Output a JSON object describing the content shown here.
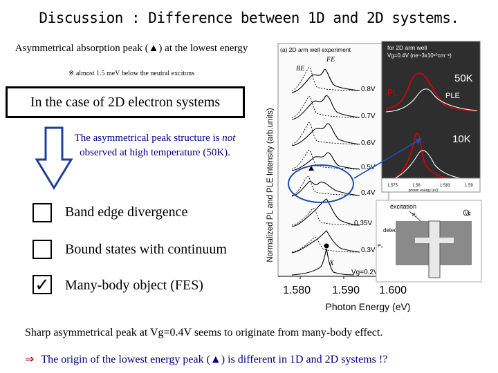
{
  "slide": {
    "title": "Discussion : Difference between 1D and 2D systems.",
    "asym_text": "Asymmetrical absorption peak (▲) at the lowest energy",
    "note": "※ almost 1.5 meV below the neutral excitons",
    "box_title": "In the case of 2D electron systems",
    "high_temp": {
      "pre": "The asymmetrical peak structure is ",
      "em": "not",
      "post": " observed at high temperature (50K)."
    },
    "options": [
      {
        "label": "Band edge divergence",
        "checked": false
      },
      {
        "label": "Bound states with continuum",
        "checked": false
      },
      {
        "label": "Many-body object (FES)",
        "checked": true
      }
    ],
    "check_mark": "✓",
    "footer1": "Sharp asymmetrical peak at Vg=0.4V seems to originate from many-body effect.",
    "footer2": {
      "arrow": "⇒",
      "text": "The origin of the lowest energy peak (▲) is different in 1D and 2D systems !?"
    }
  },
  "figure": {
    "panel_label": "(a) 2D arm well experiment",
    "be_label": "BE",
    "fe_label": "FE",
    "x_label": "X",
    "y_label": "Normalized PL and PLE Intensity (arb.units)",
    "x_axis_label": "Photon Energy (eV)",
    "x_ticks": [
      "1.580",
      "1.590",
      "1.600"
    ],
    "voltages": [
      "0.8V",
      "0.7V",
      "0.6V",
      "0.5V",
      "0.4V",
      "0.35V",
      "0.3V",
      "Vg=0.2V"
    ],
    "inset_top": {
      "line1": "for 2D arm well",
      "line2": "Vg=0.4V (ne~3x10¹⁰cm⁻¹)",
      "t_high": "50K",
      "t_low": "10K",
      "pl": "PL",
      "ple": "PLE",
      "ticks": [
        "1.575",
        "1.58",
        "1.583",
        "1.59"
      ],
      "xaxis": "photon energy (eV)"
    },
    "inset_bottom": {
      "excitation": "excitation",
      "detect": "detect",
      "p1": "P₁",
      "p2": "P₂",
      "vg": "Vg"
    }
  },
  "colors": {
    "accent_text": "#000080",
    "arrow_red": "#b00000",
    "pl_red": "#e00000",
    "ellipse_blue": "#1a4fb0",
    "inset_bg": "#303030"
  }
}
